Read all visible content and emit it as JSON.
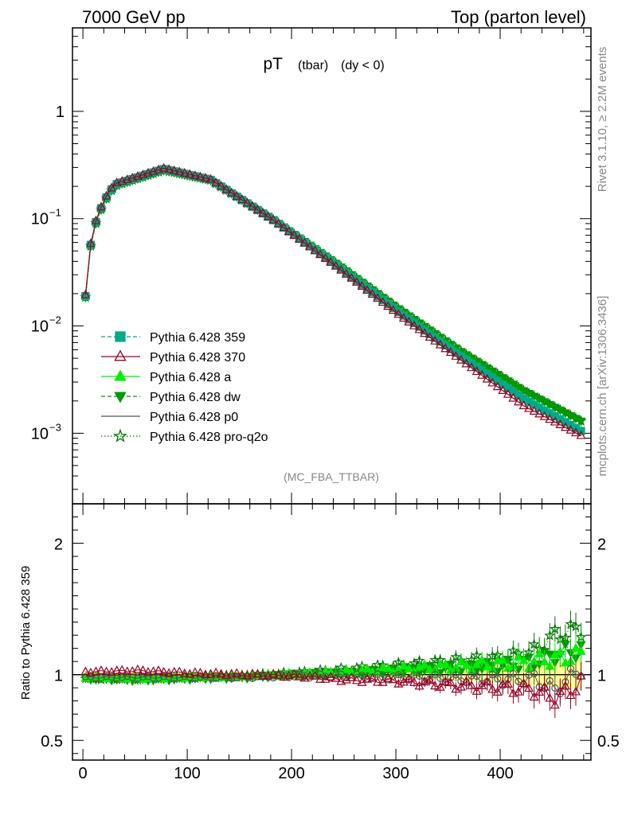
{
  "header": {
    "left": "7000 GeV pp",
    "right": "Top (parton level)"
  },
  "side": {
    "rivet": "Rivet 3.1.10, ≥ 2.2M events",
    "mcplots": "mcplots.cern.ch [arXiv:1306.3436]"
  },
  "chart_data": [
    {
      "type": "line",
      "title": {
        "main": "pT",
        "sub1": "(tbar)",
        "sub2": "(dy < 0)"
      },
      "analysis": "(MC_FBA_TTBAR)",
      "yscale": "log",
      "xlim": [
        -10,
        487
      ],
      "ylim": [
        0.00022,
        6
      ],
      "y_tick_labels": [
        {
          "mant": "1",
          "exp": ""
        },
        {
          "mant": "10",
          "exp": "−1"
        },
        {
          "mant": "10",
          "exp": "−2"
        },
        {
          "mant": "10",
          "exp": "−3"
        }
      ],
      "legend": {
        "placement": "lower-left",
        "entries": [
          {
            "name": "Pythia 6.428 359",
            "color": "#00aa88",
            "dash": "dashed",
            "marker": "square"
          },
          {
            "name": "Pythia 6.428 370",
            "color": "#990022",
            "dash": "solid",
            "marker": "open-triangle"
          },
          {
            "name": "Pythia 6.428 a",
            "color": "#00ee00",
            "dash": "solid",
            "marker": "triangle"
          },
          {
            "name": "Pythia 6.428 dw",
            "color": "#009900",
            "dash": "dashed",
            "marker": "inverted-triangle"
          },
          {
            "name": "Pythia 6.428 p0",
            "color": "#555555",
            "dash": "solid",
            "marker": "open-circle"
          },
          {
            "name": "Pythia 6.428 pro-q2o",
            "color": "#007700",
            "dash": "dotted",
            "marker": "open-star"
          }
        ]
      },
      "series": [
        {
          "name": "Pythia 6.428 359",
          "x": [
            2.5,
            32.5,
            77.5,
            122.5,
            182.5,
            242.5,
            302.5,
            362.5,
            422.5,
            477.5
          ],
          "y": [
            0.019,
            0.21,
            0.29,
            0.23,
            0.097,
            0.037,
            0.0135,
            0.0052,
            0.0021,
            0.00105
          ]
        },
        {
          "name": "Pythia 6.428 370",
          "x": [
            2.5,
            32.5,
            77.5,
            122.5,
            182.5,
            242.5,
            302.5,
            362.5,
            422.5,
            477.5
          ],
          "y": [
            0.0195,
            0.215,
            0.295,
            0.232,
            0.097,
            0.036,
            0.0128,
            0.0048,
            0.0018,
            0.00095
          ]
        },
        {
          "name": "Pythia 6.428 pro-q2o",
          "x": [
            2.5,
            32.5,
            77.5,
            122.5,
            182.5,
            242.5,
            302.5,
            362.5,
            422.5,
            477.5
          ],
          "y": [
            0.0185,
            0.205,
            0.282,
            0.228,
            0.098,
            0.0385,
            0.0145,
            0.0058,
            0.0025,
            0.0013
          ]
        }
      ]
    },
    {
      "type": "line",
      "ylabel": "Ratio to Pythia 6.428 359",
      "xlim": [
        -10,
        487
      ],
      "ylim": [
        0.35,
        2.3
      ],
      "y_ticks": [
        0.5,
        1,
        2
      ],
      "x_ticks": [
        0,
        100,
        200,
        300,
        400
      ],
      "series": [
        {
          "name": "Pythia 6.428 370",
          "color": "#990022",
          "x": [
            2.5,
            52.5,
            102.5,
            152.5,
            202.5,
            252.5,
            302.5,
            352.5,
            402.5,
            432.5,
            452.5,
            477.5
          ],
          "y": [
            1.02,
            1.03,
            1.01,
            1.0,
            0.99,
            0.96,
            0.95,
            0.92,
            0.9,
            0.88,
            0.82,
            0.93
          ]
        },
        {
          "name": "Pythia 6.428 a",
          "color": "#00ee00",
          "x": [
            2.5,
            52.5,
            102.5,
            152.5,
            202.5,
            252.5,
            302.5,
            352.5,
            402.5,
            432.5,
            452.5,
            477.5
          ],
          "y": [
            0.98,
            0.97,
            0.98,
            0.99,
            1.0,
            1.02,
            1.04,
            1.06,
            1.08,
            1.1,
            1.12,
            1.15
          ]
        },
        {
          "name": "Pythia 6.428 dw",
          "color": "#009900",
          "x": [
            2.5,
            52.5,
            102.5,
            152.5,
            202.5,
            252.5,
            302.5,
            352.5,
            402.5,
            432.5,
            452.5,
            477.5
          ],
          "y": [
            0.97,
            0.96,
            0.97,
            0.98,
            1.0,
            1.01,
            1.03,
            1.05,
            1.07,
            1.1,
            1.15,
            1.2
          ]
        },
        {
          "name": "Pythia 6.428 p0",
          "color": "#555555",
          "x": [
            2.5,
            52.5,
            102.5,
            152.5,
            202.5,
            252.5,
            302.5,
            352.5,
            402.5,
            432.5,
            452.5,
            477.5
          ],
          "y": [
            0.98,
            0.98,
            0.98,
            0.98,
            0.99,
            0.99,
            0.98,
            0.97,
            0.96,
            0.97,
            0.88,
            1.05
          ]
        },
        {
          "name": "Pythia 6.428 pro-q2o",
          "color": "#007700",
          "x": [
            2.5,
            52.5,
            102.5,
            152.5,
            202.5,
            252.5,
            302.5,
            352.5,
            402.5,
            432.5,
            452.5,
            477.5
          ],
          "y": [
            0.97,
            0.97,
            0.98,
            0.99,
            1.01,
            1.04,
            1.07,
            1.1,
            1.12,
            1.18,
            1.3,
            1.35
          ]
        }
      ]
    }
  ]
}
